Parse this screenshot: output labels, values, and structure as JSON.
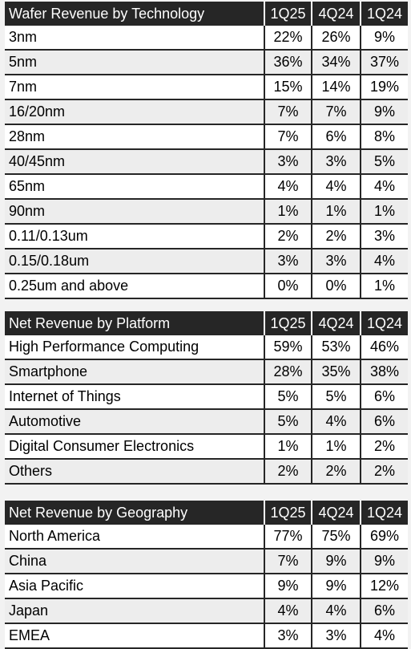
{
  "periods": [
    "1Q25",
    "4Q24",
    "1Q24"
  ],
  "tables": [
    {
      "title": "Wafer Revenue by Technology",
      "rows": [
        {
          "label": "3nm",
          "values": [
            "22%",
            "26%",
            "9%"
          ]
        },
        {
          "label": "5nm",
          "values": [
            "36%",
            "34%",
            "37%"
          ]
        },
        {
          "label": "7nm",
          "values": [
            "15%",
            "14%",
            "19%"
          ]
        },
        {
          "label": "16/20nm",
          "values": [
            "7%",
            "7%",
            "9%"
          ]
        },
        {
          "label": "28nm",
          "values": [
            "7%",
            "6%",
            "8%"
          ]
        },
        {
          "label": "40/45nm",
          "values": [
            "3%",
            "3%",
            "5%"
          ]
        },
        {
          "label": "65nm",
          "values": [
            "4%",
            "4%",
            "4%"
          ]
        },
        {
          "label": "90nm",
          "values": [
            "1%",
            "1%",
            "1%"
          ]
        },
        {
          "label": "0.11/0.13um",
          "values": [
            "2%",
            "2%",
            "3%"
          ]
        },
        {
          "label": "0.15/0.18um",
          "values": [
            "3%",
            "3%",
            "4%"
          ]
        },
        {
          "label": "0.25um and above",
          "values": [
            "0%",
            "0%",
            "1%"
          ]
        }
      ]
    },
    {
      "title": "Net Revenue by Platform",
      "rows": [
        {
          "label": "High Performance Computing",
          "values": [
            "59%",
            "53%",
            "46%"
          ]
        },
        {
          "label": "Smartphone",
          "values": [
            "28%",
            "35%",
            "38%"
          ]
        },
        {
          "label": "Internet of Things",
          "values": [
            "5%",
            "5%",
            "6%"
          ]
        },
        {
          "label": "Automotive",
          "values": [
            "5%",
            "4%",
            "6%"
          ]
        },
        {
          "label": "Digital Consumer Electronics",
          "values": [
            "1%",
            "1%",
            "2%"
          ]
        },
        {
          "label": "Others",
          "values": [
            "2%",
            "2%",
            "2%"
          ]
        }
      ]
    },
    {
      "title": "Net Revenue by Geography",
      "rows": [
        {
          "label": "North America",
          "values": [
            "77%",
            "75%",
            "69%"
          ]
        },
        {
          "label": "China",
          "values": [
            "7%",
            "9%",
            "9%"
          ]
        },
        {
          "label": "Asia Pacific",
          "values": [
            "9%",
            "9%",
            "12%"
          ]
        },
        {
          "label": "Japan",
          "values": [
            "4%",
            "4%",
            "6%"
          ]
        },
        {
          "label": "EMEA",
          "values": [
            "3%",
            "3%",
            "4%"
          ]
        }
      ]
    }
  ]
}
